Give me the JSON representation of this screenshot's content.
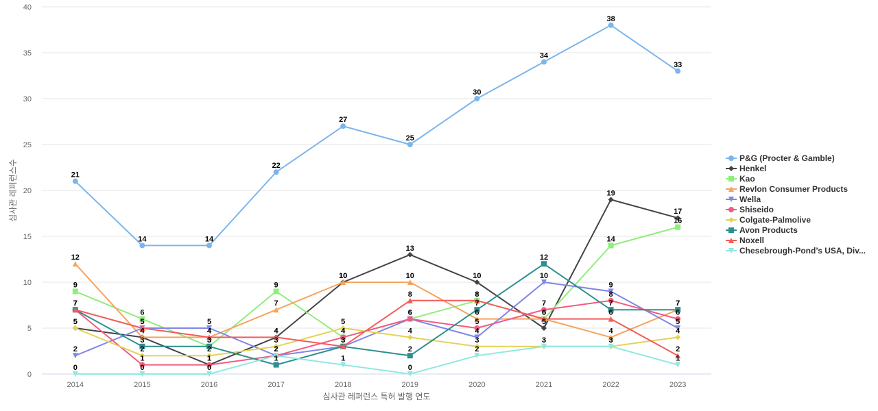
{
  "chart_data": {
    "type": "line",
    "title": "",
    "xlabel": "심사관 레퍼런스 특허 발행 연도",
    "ylabel": "심사관 레퍼런스수",
    "ylim": [
      0,
      40
    ],
    "yticks": [
      0,
      5,
      10,
      15,
      20,
      25,
      30,
      35,
      40
    ],
    "categories": [
      "2014",
      "2015",
      "2016",
      "2017",
      "2018",
      "2019",
      "2020",
      "2021",
      "2022",
      "2023"
    ],
    "legend_position": "right",
    "series": [
      {
        "name": "P&G (Procter & Gamble)",
        "color": "#7cb5ec",
        "marker": "circle",
        "values": [
          21,
          14,
          14,
          22,
          27,
          25,
          30,
          34,
          38,
          33
        ]
      },
      {
        "name": "Henkel",
        "color": "#434348",
        "marker": "diamond",
        "values": [
          5,
          4,
          1,
          4,
          10,
          13,
          10,
          5,
          19,
          17
        ]
      },
      {
        "name": "Kao",
        "color": "#90ed7d",
        "marker": "square",
        "values": [
          9,
          6,
          3,
          9,
          4,
          6,
          8,
          6,
          14,
          16
        ]
      },
      {
        "name": "Revlon Consumer Products",
        "color": "#f7a35c",
        "marker": "triangle",
        "values": [
          12,
          4,
          4,
          7,
          10,
          10,
          6,
          6,
          4,
          7
        ]
      },
      {
        "name": "Wella",
        "color": "#8085e9",
        "marker": "triangle-down",
        "values": [
          2,
          5,
          5,
          2,
          3,
          6,
          4,
          10,
          9,
          5
        ]
      },
      {
        "name": "Shiseido",
        "color": "#f15c80",
        "marker": "circle",
        "values": [
          7,
          1,
          1,
          2,
          4,
          6,
          5,
          7,
          8,
          6
        ]
      },
      {
        "name": "Colgate-Palmolive",
        "color": "#e4d354",
        "marker": "diamond",
        "values": [
          5,
          2,
          2,
          3,
          5,
          4,
          3,
          3,
          3,
          4
        ]
      },
      {
        "name": "Avon Products",
        "color": "#2b908f",
        "marker": "square",
        "values": [
          7,
          3,
          3,
          1,
          3,
          2,
          7,
          12,
          7,
          7
        ]
      },
      {
        "name": "Noxell",
        "color": "#f45b5b",
        "marker": "triangle",
        "values": [
          7,
          5,
          4,
          4,
          3,
          8,
          8,
          6,
          6,
          2
        ]
      },
      {
        "name": "Chesebrough-Pond’s USA, Div...",
        "color": "#91e8e1",
        "marker": "triangle-down",
        "values": [
          0,
          0,
          0,
          2,
          1,
          0,
          2,
          3,
          3,
          1
        ]
      }
    ]
  }
}
